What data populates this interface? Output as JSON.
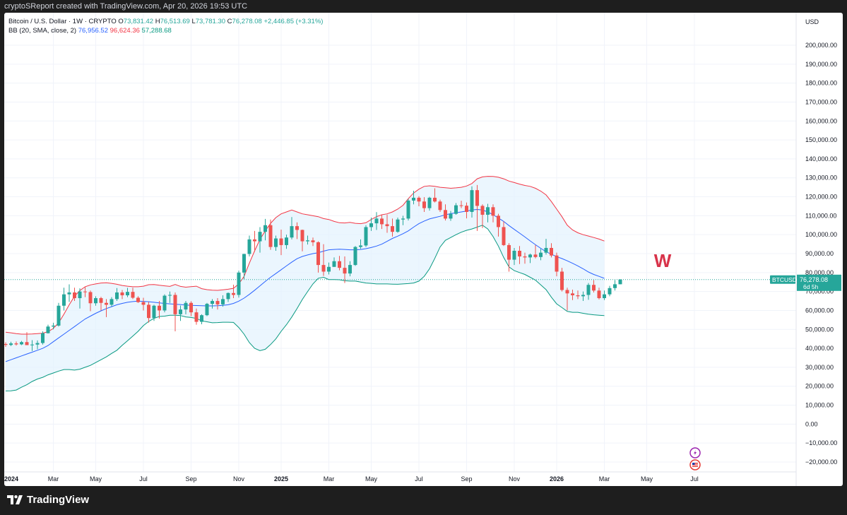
{
  "header": {
    "created_text": "cryptoSReport created with TradingView.com, Apr 20, 2026 19:53 UTC"
  },
  "legend": {
    "symbol_title": "Bitcoin / U.S. Dollar · 1W · CRYPTO",
    "open_label": "O",
    "open": "73,831.42",
    "high_label": "H",
    "high": "76,513.69",
    "low_label": "L",
    "low": "73,781.30",
    "close_label": "C",
    "close": "76,278.08",
    "change": "+2,446.85 (+3.31%)",
    "bb_title": "BB (20, SMA, close, 2)",
    "bb_basis": "76,956.52",
    "bb_upper": "96,624.36",
    "bb_lower": "57,288.68"
  },
  "price_axis": {
    "currency": "USD",
    "ticks": [
      "200,000.00",
      "190,000.00",
      "180,000.00",
      "170,000.00",
      "160,000.00",
      "150,000.00",
      "140,000.00",
      "130,000.00",
      "120,000.00",
      "110,000.00",
      "100,000.00",
      "90,000.00",
      "80,000.00",
      "70,000.00",
      "60,000.00",
      "50,000.00",
      "40,000.00",
      "30,000.00",
      "20,000.00",
      "10,000.00",
      "0.00",
      "−10,000.00",
      "−20,000.00"
    ],
    "price_tag_symbol": "BTCUSD",
    "price_tag_value": "76,278.08",
    "price_tag_countdown": "6d 5h"
  },
  "time_axis": {
    "labels": [
      "2024",
      "Mar",
      "May",
      "Jul",
      "Sep",
      "Nov",
      "2025",
      "Mar",
      "May",
      "Jul",
      "Sep",
      "Nov",
      "2026",
      "Mar",
      "May",
      "Jul"
    ],
    "bold": [
      true,
      false,
      false,
      false,
      false,
      false,
      true,
      false,
      false,
      false,
      false,
      false,
      true,
      false,
      false,
      false
    ]
  },
  "annotation": {
    "text": "W",
    "color": "#d8334a"
  },
  "footer": {
    "brand": "TradingView"
  },
  "colors": {
    "up": "#26a69a",
    "down": "#ef5350",
    "basis": "#2962ff",
    "upper": "#f23645",
    "lower": "#089981",
    "fill": "#e3f2fd"
  },
  "chart_data": {
    "type": "candlestick",
    "ylim": [
      -20000,
      205000
    ],
    "start_date": "2024-01-01",
    "interval": "1W",
    "candles": [
      {
        "o": 42300,
        "h": 43200,
        "l": 40800,
        "c": 41800
      },
      {
        "o": 41800,
        "h": 43500,
        "l": 41200,
        "c": 42600
      },
      {
        "o": 42600,
        "h": 43600,
        "l": 41500,
        "c": 42100
      },
      {
        "o": 42100,
        "h": 43900,
        "l": 41700,
        "c": 43300
      },
      {
        "o": 43300,
        "h": 48500,
        "l": 42500,
        "c": 41700
      },
      {
        "o": 41700,
        "h": 44300,
        "l": 38600,
        "c": 42000
      },
      {
        "o": 42000,
        "h": 44200,
        "l": 39500,
        "c": 42800
      },
      {
        "o": 42800,
        "h": 49000,
        "l": 42000,
        "c": 48000
      },
      {
        "o": 48000,
        "h": 52500,
        "l": 47800,
        "c": 51500
      },
      {
        "o": 51500,
        "h": 53500,
        "l": 50000,
        "c": 52000
      },
      {
        "o": 52000,
        "h": 64000,
        "l": 51500,
        "c": 62500
      },
      {
        "o": 62500,
        "h": 72000,
        "l": 60000,
        "c": 68500
      },
      {
        "o": 68500,
        "h": 73800,
        "l": 64500,
        "c": 69500
      },
      {
        "o": 69500,
        "h": 72000,
        "l": 65000,
        "c": 66500
      },
      {
        "o": 66500,
        "h": 71700,
        "l": 61000,
        "c": 70000
      },
      {
        "o": 70000,
        "h": 72500,
        "l": 67000,
        "c": 69700
      },
      {
        "o": 69700,
        "h": 70500,
        "l": 59600,
        "c": 63800
      },
      {
        "o": 63800,
        "h": 67500,
        "l": 62500,
        "c": 66500
      },
      {
        "o": 66500,
        "h": 67200,
        "l": 60000,
        "c": 64000
      },
      {
        "o": 64000,
        "h": 66000,
        "l": 56500,
        "c": 63000
      },
      {
        "o": 63000,
        "h": 67000,
        "l": 62000,
        "c": 66000
      },
      {
        "o": 66000,
        "h": 71800,
        "l": 65000,
        "c": 69500
      },
      {
        "o": 69500,
        "h": 70800,
        "l": 66000,
        "c": 68000
      },
      {
        "o": 68000,
        "h": 71900,
        "l": 67000,
        "c": 69800
      },
      {
        "o": 69800,
        "h": 72000,
        "l": 66000,
        "c": 66700
      },
      {
        "o": 66700,
        "h": 67500,
        "l": 64000,
        "c": 64400
      },
      {
        "o": 64400,
        "h": 66700,
        "l": 60000,
        "c": 63000
      },
      {
        "o": 63000,
        "h": 64500,
        "l": 53600,
        "c": 56000
      },
      {
        "o": 56000,
        "h": 63000,
        "l": 54500,
        "c": 62500
      },
      {
        "o": 62500,
        "h": 65000,
        "l": 55700,
        "c": 60000
      },
      {
        "o": 60000,
        "h": 68500,
        "l": 59000,
        "c": 67800
      },
      {
        "o": 67800,
        "h": 70000,
        "l": 64000,
        "c": 68200
      },
      {
        "o": 68200,
        "h": 69500,
        "l": 49000,
        "c": 58000
      },
      {
        "o": 58000,
        "h": 62600,
        "l": 54500,
        "c": 60500
      },
      {
        "o": 60500,
        "h": 65000,
        "l": 58000,
        "c": 64000
      },
      {
        "o": 64000,
        "h": 64900,
        "l": 57000,
        "c": 59000
      },
      {
        "o": 59000,
        "h": 61000,
        "l": 52500,
        "c": 54000
      },
      {
        "o": 54000,
        "h": 58000,
        "l": 52700,
        "c": 57500
      },
      {
        "o": 57500,
        "h": 64000,
        "l": 57000,
        "c": 63500
      },
      {
        "o": 63500,
        "h": 66000,
        "l": 61000,
        "c": 65000
      },
      {
        "o": 65000,
        "h": 66500,
        "l": 60500,
        "c": 63200
      },
      {
        "o": 63200,
        "h": 68000,
        "l": 62000,
        "c": 66000
      },
      {
        "o": 66000,
        "h": 69500,
        "l": 64500,
        "c": 69200
      },
      {
        "o": 69200,
        "h": 73600,
        "l": 66500,
        "c": 68200
      },
      {
        "o": 68200,
        "h": 81000,
        "l": 66800,
        "c": 80000
      },
      {
        "o": 80000,
        "h": 89900,
        "l": 76500,
        "c": 89800
      },
      {
        "o": 89800,
        "h": 99500,
        "l": 88500,
        "c": 97500
      },
      {
        "o": 97500,
        "h": 102000,
        "l": 91000,
        "c": 96500
      },
      {
        "o": 96500,
        "h": 104000,
        "l": 90500,
        "c": 101500
      },
      {
        "o": 101500,
        "h": 108300,
        "l": 97000,
        "c": 105000
      },
      {
        "o": 105000,
        "h": 108000,
        "l": 92000,
        "c": 93500
      },
      {
        "o": 93500,
        "h": 99500,
        "l": 91500,
        "c": 98000
      },
      {
        "o": 98000,
        "h": 102700,
        "l": 89200,
        "c": 94500
      },
      {
        "o": 94500,
        "h": 100000,
        "l": 92500,
        "c": 98500
      },
      {
        "o": 98500,
        "h": 109300,
        "l": 97500,
        "c": 104500
      },
      {
        "o": 104500,
        "h": 106500,
        "l": 97700,
        "c": 102500
      },
      {
        "o": 102500,
        "h": 102700,
        "l": 91200,
        "c": 96500
      },
      {
        "o": 96500,
        "h": 99500,
        "l": 94800,
        "c": 97000
      },
      {
        "o": 97000,
        "h": 98500,
        "l": 94000,
        "c": 96000
      },
      {
        "o": 96000,
        "h": 96500,
        "l": 80000,
        "c": 84000
      },
      {
        "o": 84000,
        "h": 95000,
        "l": 78200,
        "c": 80500
      },
      {
        "o": 80500,
        "h": 85300,
        "l": 79000,
        "c": 83000
      },
      {
        "o": 83000,
        "h": 88000,
        "l": 83000,
        "c": 86000
      },
      {
        "o": 86000,
        "h": 88800,
        "l": 81200,
        "c": 82500
      },
      {
        "o": 82500,
        "h": 88500,
        "l": 74500,
        "c": 79500
      },
      {
        "o": 79500,
        "h": 86000,
        "l": 78000,
        "c": 84000
      },
      {
        "o": 84000,
        "h": 94000,
        "l": 83500,
        "c": 93500
      },
      {
        "o": 93500,
        "h": 97500,
        "l": 92500,
        "c": 94300
      },
      {
        "o": 94300,
        "h": 105000,
        "l": 93500,
        "c": 104000
      },
      {
        "o": 104000,
        "h": 109000,
        "l": 102000,
        "c": 106000
      },
      {
        "o": 106000,
        "h": 111900,
        "l": 102500,
        "c": 108500
      },
      {
        "o": 108500,
        "h": 110500,
        "l": 103000,
        "c": 105500
      },
      {
        "o": 105500,
        "h": 110600,
        "l": 101000,
        "c": 104500
      },
      {
        "o": 104500,
        "h": 108500,
        "l": 99000,
        "c": 101500
      },
      {
        "o": 101500,
        "h": 109000,
        "l": 101000,
        "c": 108000
      },
      {
        "o": 108000,
        "h": 110000,
        "l": 105000,
        "c": 108500
      },
      {
        "o": 108500,
        "h": 118900,
        "l": 107500,
        "c": 118000
      },
      {
        "o": 118000,
        "h": 123200,
        "l": 116000,
        "c": 119500
      },
      {
        "o": 119500,
        "h": 120300,
        "l": 115000,
        "c": 117500
      },
      {
        "o": 117500,
        "h": 119800,
        "l": 112000,
        "c": 114000
      },
      {
        "o": 114000,
        "h": 120000,
        "l": 112700,
        "c": 119500
      },
      {
        "o": 119500,
        "h": 124500,
        "l": 117000,
        "c": 117500
      },
      {
        "o": 117500,
        "h": 118500,
        "l": 112000,
        "c": 113000
      },
      {
        "o": 113000,
        "h": 116000,
        "l": 107500,
        "c": 108500
      },
      {
        "o": 108500,
        "h": 112500,
        "l": 107300,
        "c": 111000
      },
      {
        "o": 111000,
        "h": 116700,
        "l": 110500,
        "c": 115500
      },
      {
        "o": 115500,
        "h": 117900,
        "l": 114000,
        "c": 115300
      },
      {
        "o": 115300,
        "h": 117000,
        "l": 108600,
        "c": 112000
      },
      {
        "o": 112000,
        "h": 125500,
        "l": 109000,
        "c": 123500
      },
      {
        "o": 123500,
        "h": 126200,
        "l": 102000,
        "c": 115200
      },
      {
        "o": 115200,
        "h": 116000,
        "l": 103500,
        "c": 110500
      },
      {
        "o": 110500,
        "h": 116300,
        "l": 106500,
        "c": 114500
      },
      {
        "o": 114500,
        "h": 116000,
        "l": 106500,
        "c": 110000
      },
      {
        "o": 110000,
        "h": 111000,
        "l": 99000,
        "c": 104000
      },
      {
        "o": 104000,
        "h": 107000,
        "l": 94000,
        "c": 94500
      },
      {
        "o": 94500,
        "h": 95500,
        "l": 80500,
        "c": 86800
      },
      {
        "o": 86800,
        "h": 93000,
        "l": 84000,
        "c": 91500
      },
      {
        "o": 91500,
        "h": 94000,
        "l": 84500,
        "c": 88500
      },
      {
        "o": 88500,
        "h": 90500,
        "l": 84700,
        "c": 88000
      },
      {
        "o": 88000,
        "h": 90000,
        "l": 85000,
        "c": 89500
      },
      {
        "o": 89500,
        "h": 94500,
        "l": 87500,
        "c": 88200
      },
      {
        "o": 88200,
        "h": 92500,
        "l": 86500,
        "c": 90500
      },
      {
        "o": 90500,
        "h": 97800,
        "l": 89500,
        "c": 93000
      },
      {
        "o": 93000,
        "h": 95500,
        "l": 88000,
        "c": 89000
      },
      {
        "o": 89000,
        "h": 90500,
        "l": 78000,
        "c": 80500
      },
      {
        "o": 80500,
        "h": 82500,
        "l": 70000,
        "c": 70800
      },
      {
        "o": 70800,
        "h": 72000,
        "l": 60000,
        "c": 69000
      },
      {
        "o": 69000,
        "h": 71000,
        "l": 65500,
        "c": 68000
      },
      {
        "o": 68000,
        "h": 70500,
        "l": 66000,
        "c": 67500
      },
      {
        "o": 67500,
        "h": 70000,
        "l": 65000,
        "c": 68200
      },
      {
        "o": 68200,
        "h": 74500,
        "l": 65600,
        "c": 73500
      },
      {
        "o": 73500,
        "h": 76000,
        "l": 69500,
        "c": 70500
      },
      {
        "o": 70500,
        "h": 72000,
        "l": 65800,
        "c": 66500
      },
      {
        "o": 66500,
        "h": 70500,
        "l": 65500,
        "c": 68500
      },
      {
        "o": 68500,
        "h": 73000,
        "l": 67500,
        "c": 71800
      },
      {
        "o": 71800,
        "h": 76000,
        "l": 70500,
        "c": 73831
      },
      {
        "o": 73831,
        "h": 76514,
        "l": 73781,
        "c": 76278
      }
    ],
    "bb_upper": [
      48500,
      48200,
      47800,
      47500,
      47500,
      47600,
      47800,
      48000,
      48800,
      50500,
      53500,
      58000,
      63000,
      67500,
      70500,
      72500,
      73500,
      74000,
      74500,
      74600,
      74300,
      73800,
      73200,
      72800,
      72500,
      72500,
      72800,
      73600,
      73700,
      73300,
      73000,
      72700,
      73700,
      72700,
      72300,
      72600,
      72800,
      71500,
      71000,
      70700,
      70600,
      70900,
      71200,
      71700,
      74000,
      78000,
      85000,
      91500,
      97500,
      102000,
      106000,
      109000,
      111000,
      112000,
      113000,
      112000,
      111000,
      110500,
      110000,
      109500,
      108500,
      108000,
      107000,
      106300,
      106200,
      106500,
      106000,
      105800,
      106300,
      108000,
      109500,
      110500,
      111000,
      112000,
      113500,
      115500,
      119000,
      122000,
      124000,
      125500,
      125800,
      125500,
      125000,
      124800,
      124500,
      124700,
      125000,
      125700,
      127000,
      129500,
      130500,
      130800,
      130700,
      130300,
      129500,
      128300,
      127500,
      126700,
      126000,
      125500,
      124500,
      123000,
      121000,
      117500,
      113500,
      109500,
      105000,
      102500,
      101000,
      100000,
      99300,
      98500,
      97700,
      96624
    ],
    "bb_basis": [
      33000,
      34000,
      35000,
      36000,
      37000,
      38000,
      39000,
      40000,
      41500,
      43500,
      45500,
      47500,
      49500,
      51500,
      53500,
      55500,
      57000,
      58500,
      59800,
      61000,
      62000,
      63000,
      63700,
      64300,
      64700,
      64900,
      64800,
      64600,
      64300,
      64000,
      63700,
      63500,
      63300,
      63100,
      62900,
      62700,
      62600,
      62500,
      62400,
      62400,
      62500,
      62700,
      63000,
      63700,
      64900,
      66500,
      68500,
      70700,
      73000,
      75300,
      77500,
      79500,
      81500,
      83500,
      85500,
      87300,
      88500,
      89300,
      90000,
      90500,
      91300,
      92000,
      92200,
      92300,
      92200,
      92000,
      92000,
      92200,
      92600,
      93200,
      94000,
      95000,
      96500,
      98000,
      99200,
      100500,
      102000,
      104000,
      105800,
      107200,
      108300,
      109000,
      109700,
      110500,
      111100,
      111500,
      112000,
      112500,
      113000,
      113300,
      113000,
      112000,
      110500,
      108800,
      107000,
      104800,
      102800,
      100800,
      98800,
      96700,
      94700,
      92800,
      91000,
      89700,
      88400,
      87400,
      86200,
      84900,
      83500,
      82000,
      80300,
      79000,
      78000,
      76957
    ],
    "bb_lower": [
      17500,
      17600,
      18000,
      19500,
      20800,
      22500,
      23800,
      24700,
      26000,
      27000,
      28000,
      28800,
      28800,
      28500,
      29000,
      30000,
      31000,
      32500,
      34000,
      35500,
      37300,
      39000,
      41600,
      44000,
      46500,
      49000,
      52000,
      54200,
      55800,
      56800,
      57000,
      57500,
      57500,
      57300,
      56600,
      56300,
      55800,
      54500,
      54000,
      53500,
      53600,
      53800,
      53800,
      53700,
      51000,
      47500,
      43000,
      40000,
      38800,
      39500,
      42000,
      45000,
      49000,
      52500,
      56500,
      61000,
      65800,
      70000,
      74000,
      77000,
      77500,
      76300,
      76300,
      76200,
      75700,
      75500,
      75500,
      75000,
      74500,
      74300,
      74000,
      74000,
      74000,
      73900,
      73800,
      74000,
      74200,
      74500,
      75500,
      78000,
      82000,
      87500,
      93500,
      97000,
      98500,
      100000,
      101300,
      102300,
      103000,
      104000,
      105000,
      103000,
      99000,
      94000,
      88000,
      83000,
      81000,
      80000,
      79000,
      77500,
      76000,
      73500,
      71000,
      67000,
      63500,
      61500,
      59500,
      59000,
      59000,
      58500,
      58000,
      57700,
      57500,
      57289
    ]
  }
}
